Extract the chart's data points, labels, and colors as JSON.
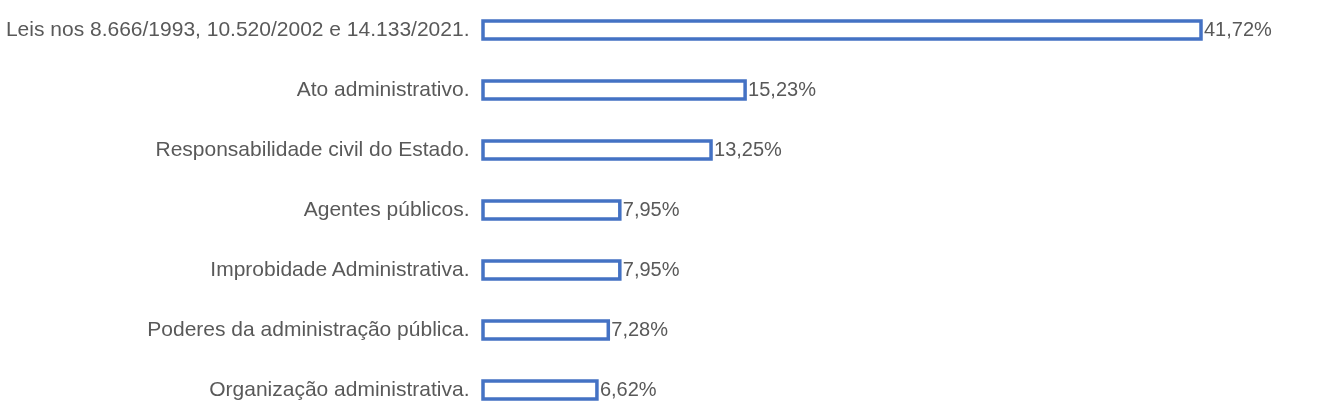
{
  "chart_data": {
    "type": "bar",
    "orientation": "horizontal",
    "categories": [
      "Leis nos 8.666/1993, 10.520/2002 e 14.133/2021.",
      "Ato administrativo.",
      "Responsabilidade civil do Estado.",
      "Agentes públicos.",
      "Improbidade Administrativa.",
      "Poderes da administração pública.",
      "Organização administrativa."
    ],
    "values": [
      41.72,
      15.23,
      13.25,
      7.95,
      7.95,
      7.28,
      6.62
    ],
    "value_labels": [
      "41,72%",
      "15,23%",
      "13,25%",
      "7,95%",
      "7,95%",
      "7,28%",
      "6,62%"
    ],
    "color": "#4472c4"
  }
}
